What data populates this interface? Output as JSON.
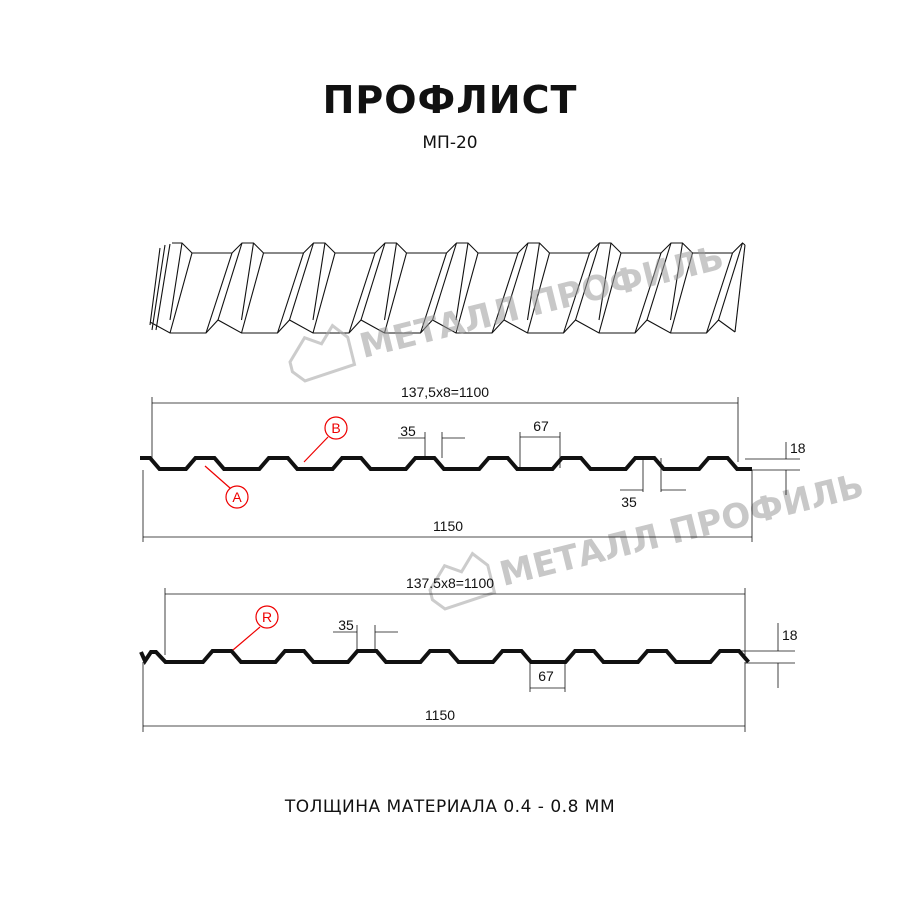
{
  "header": {
    "title": "ПРОФЛИСТ",
    "subtitle": "МП-20"
  },
  "footer": {
    "text": "ТОЛЩИНА МАТЕРИАЛА 0.4 - 0.8 ММ"
  },
  "watermark": {
    "text": "МЕТАЛЛ ПРОФИЛЬ",
    "color": "#9a9a9a"
  },
  "profile_a": {
    "useful_width_label": "137,5x8=1100",
    "total_width_label": "1150",
    "crest_label": "35",
    "trough_label": "67",
    "bottom_crest_label": "35",
    "height_label": "18",
    "markers": [
      "B",
      "A"
    ]
  },
  "profile_r": {
    "useful_width_label": "137.5x8=1100",
    "total_width_label": "1150",
    "crest_label": "35",
    "trough_label": "67",
    "height_label": "18",
    "markers": [
      "R"
    ]
  },
  "colors": {
    "line": "#111111",
    "marker": "#ee0000"
  }
}
